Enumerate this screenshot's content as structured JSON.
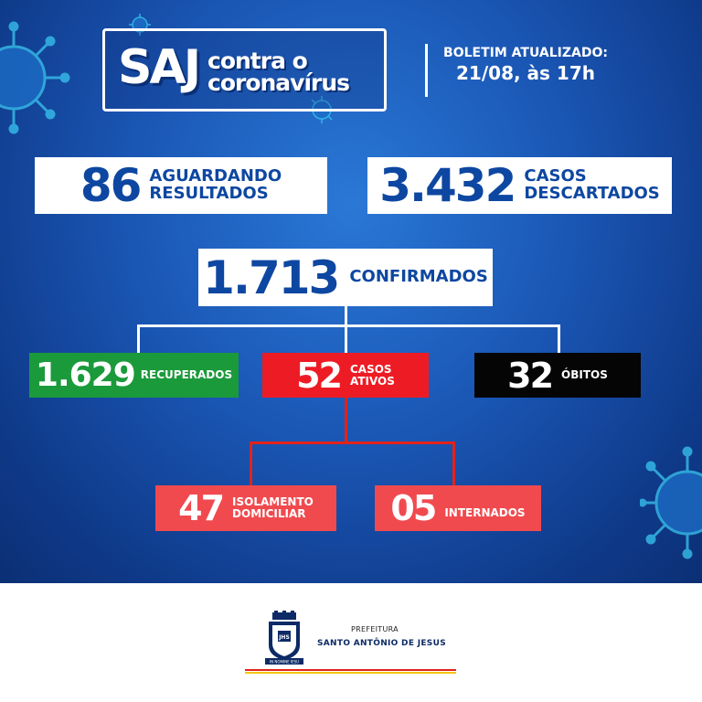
{
  "header": {
    "logo_saj": "SAJ",
    "logo_line1": "contra o",
    "logo_line2": "coronavírus",
    "bulletin_label": "BOLETIM ATUALIZADO:",
    "bulletin_date": "21/08, às 17h"
  },
  "stats": {
    "awaiting": {
      "value": "86",
      "label_line1": "AGUARDANDO",
      "label_line2": "RESULTADOS"
    },
    "discarded": {
      "value": "3.432",
      "label_line1": "CASOS",
      "label_line2": "DESCARTADOS"
    },
    "confirmed": {
      "value": "1.713",
      "label": "CONFIRMADOS"
    },
    "recovered": {
      "value": "1.629",
      "label": "RECUPERADOS"
    },
    "active": {
      "value": "52",
      "label_line1": "CASOS",
      "label_line2": "ATIVOS"
    },
    "deaths": {
      "value": "32",
      "label": "ÓBITOS"
    },
    "home_isolation": {
      "value": "47",
      "label_line1": "ISOLAMENTO",
      "label_line2": "DOMICILIAR"
    },
    "hospitalized": {
      "value": "05",
      "label": "INTERNADOS"
    }
  },
  "footer": {
    "prefeitura": "PREFEITURA",
    "city": "SANTO ANTÔNIO DE JESUS",
    "crest_text": "JHS",
    "crest_motto": "IN NOMINE IESU"
  },
  "colors": {
    "background": "#1a56b4",
    "brand_blue": "#0d47a1",
    "recovered": "#1b9a3b",
    "active": "#ed1c24",
    "deaths": "#050505",
    "sub_active": "#f04a4f",
    "stripe_red": "#e2231a",
    "stripe_yellow": "#f5c400"
  },
  "icons": [
    "coronavirus-icon",
    "municipal-crest-icon"
  ]
}
